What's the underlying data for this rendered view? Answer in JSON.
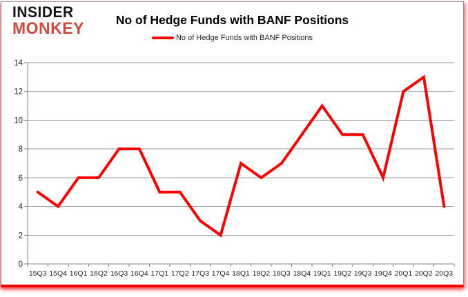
{
  "logo": {
    "line1": "INSIDER",
    "line2": "MONKEY"
  },
  "header": {
    "title": "No of Hedge Funds with BANF Positions"
  },
  "legend": {
    "label": "No of Hedge Funds with BANF Positions"
  },
  "chart_data": {
    "type": "line",
    "title": "No of Hedge Funds with BANF Positions",
    "series": [
      {
        "name": "No of Hedge Funds with BANF Positions",
        "values": [
          5,
          4,
          6,
          6,
          8,
          8,
          5,
          5,
          3,
          2,
          7,
          6,
          7,
          9,
          11,
          9,
          9,
          6,
          12,
          13,
          4
        ]
      }
    ],
    "categories": [
      "15Q3",
      "15Q4",
      "16Q1",
      "16Q2",
      "16Q3",
      "16Q4",
      "17Q1",
      "17Q2",
      "17Q3",
      "17Q4",
      "18Q1",
      "18Q2",
      "18Q3",
      "18Q4",
      "19Q1",
      "19Q2",
      "19Q3",
      "19Q4",
      "20Q1",
      "20Q2",
      "20Q3"
    ],
    "yticks": [
      0,
      2,
      4,
      6,
      8,
      10,
      12,
      14
    ],
    "ylim": [
      0,
      14
    ],
    "grid": true,
    "legend_position": "top",
    "colors": {
      "line": "#ff0000",
      "grid": "#9d9d9d",
      "axis": "#7f7f7f",
      "tick_text": "#1f1f1f",
      "logo_accent": "#d0483b",
      "frame_bottom": "#ec0400"
    }
  }
}
